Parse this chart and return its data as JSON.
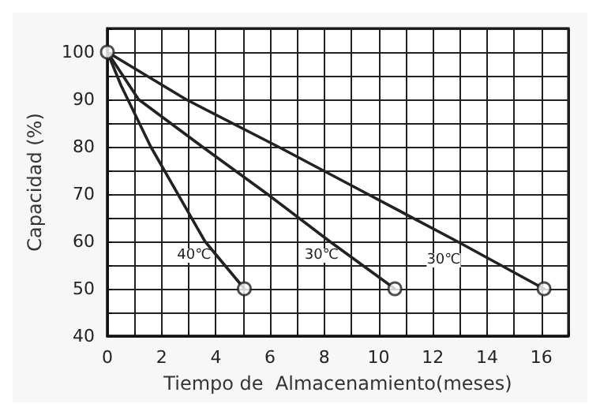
{
  "chart_data": {
    "type": "line",
    "xlabel": "Tiempo de  Almacenamiento(meses)",
    "ylabel": "Capacidad (%)",
    "xlim": [
      0,
      17
    ],
    "ylim": [
      40,
      105
    ],
    "xticks": [
      0,
      {
        "value": 1,
        "label": null
      },
      2,
      {
        "value": 3,
        "label": null
      },
      4,
      {
        "value": 5,
        "label": null
      },
      6,
      {
        "value": 7,
        "label": null
      },
      8,
      {
        "value": 9,
        "label": null
      },
      10,
      {
        "value": 11,
        "label": null
      },
      12,
      {
        "value": 13,
        "label": null
      },
      14,
      {
        "value": 15,
        "label": null
      },
      16,
      {
        "value": 17,
        "label": null
      }
    ],
    "yticks": [
      40,
      {
        "value": 45,
        "label": null
      },
      50,
      {
        "value": 55,
        "label": null
      },
      60,
      {
        "value": 65,
        "label": null
      },
      70,
      {
        "value": 75,
        "label": null
      },
      80,
      {
        "value": 85,
        "label": null
      },
      90,
      {
        "value": 95,
        "label": null
      },
      100,
      {
        "value": 105,
        "label": null
      }
    ],
    "grid": true,
    "marker": "none",
    "line_style": "solid",
    "series": [
      {
        "color": "#222222",
        "x": [
          0,
          0.5,
          1.6,
          3.6,
          5.05
        ],
        "values": [
          100,
          93,
          80,
          60,
          50
        ]
      },
      {
        "color": "#222222",
        "x": [
          0,
          1.15,
          3.5,
          5.9,
          8.2,
          10.6
        ],
        "values": [
          100,
          90,
          80,
          70,
          60,
          50
        ]
      },
      {
        "color": "#222222",
        "x": [
          0,
          2.9,
          6.3,
          9.6,
          12.9,
          16.1
        ],
        "values": [
          100,
          90,
          80,
          70,
          60,
          50
        ]
      },
      {
        "type": "scatter",
        "marker": "circle",
        "color": "#222222",
        "x": [
          0,
          5.05,
          10.6,
          16.1
        ],
        "values": [
          100,
          50,
          50,
          50
        ]
      }
    ],
    "annotations": [
      {
        "text": "40℃",
        "x": 3.2,
        "y": 57
      },
      {
        "text": "30℃",
        "x": 7.9,
        "y": 57
      },
      {
        "text": "30℃",
        "x": 12.4,
        "y": 56
      }
    ]
  }
}
